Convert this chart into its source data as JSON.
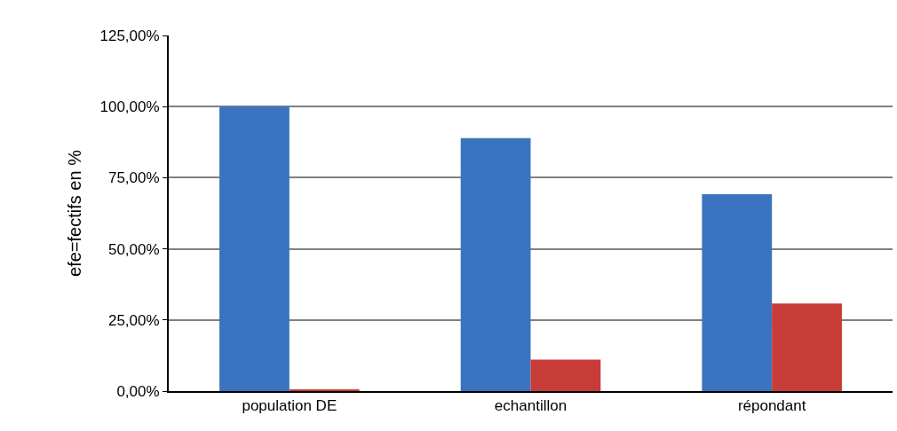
{
  "chart_data": {
    "type": "bar",
    "ylabel": "efe=fectifs en %",
    "categories": [
      "population DE",
      "echantillon",
      "répondant"
    ],
    "series": [
      {
        "color": "#3a74c0",
        "values": [
          100,
          88.9,
          69.2
        ]
      },
      {
        "color": "#c73c37",
        "values": [
          0.5,
          11.1,
          30.8
        ]
      }
    ],
    "ylim": [
      0,
      125
    ],
    "yticks": [
      {
        "value": 0,
        "label": "0,00%"
      },
      {
        "value": 25,
        "label": "25,00%"
      },
      {
        "value": 50,
        "label": "50,00%"
      },
      {
        "value": 75,
        "label": "75,00%"
      },
      {
        "value": 100,
        "label": "100,00%"
      },
      {
        "value": 125,
        "label": "125,00%"
      }
    ],
    "grid": "y"
  }
}
